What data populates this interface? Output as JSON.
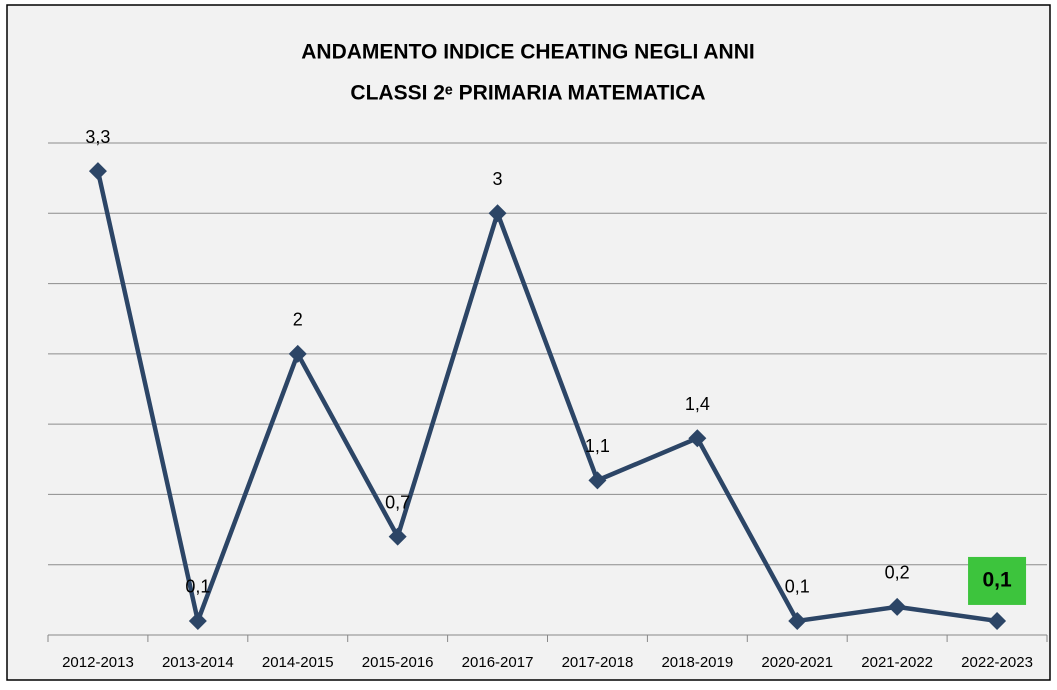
{
  "chart_data": {
    "type": "line",
    "title": [
      "ANDAMENTO INDICE CHEATING NEGLI ANNI",
      "CLASSI 2ᵉ PRIMARIA MATEMATICA"
    ],
    "categories": [
      "2012-2013",
      "2013-2014",
      "2014-2015",
      "2015-2016",
      "2016-2017",
      "2017-2018",
      "2018-2019",
      "2020-2021",
      "2021-2022",
      "2022-2023"
    ],
    "series": [
      {
        "name": "Indice cheating",
        "color": "#2c4566",
        "values": [
          3.3,
          0.1,
          2,
          0.7,
          3,
          1.1,
          1.4,
          0.1,
          0.2,
          0.1
        ],
        "value_labels": [
          "3,3",
          "0,1",
          "2",
          "0,7",
          "3",
          "1,1",
          "1,4",
          "0,1",
          "0,2",
          "0,1"
        ]
      }
    ],
    "ylim": [
      0,
      3.5
    ],
    "yticks": [
      0,
      0.5,
      1,
      1.5,
      2,
      2.5,
      3,
      3.5
    ],
    "grid": true,
    "highlight_index": 9,
    "highlight_color": "#3dc43d"
  }
}
